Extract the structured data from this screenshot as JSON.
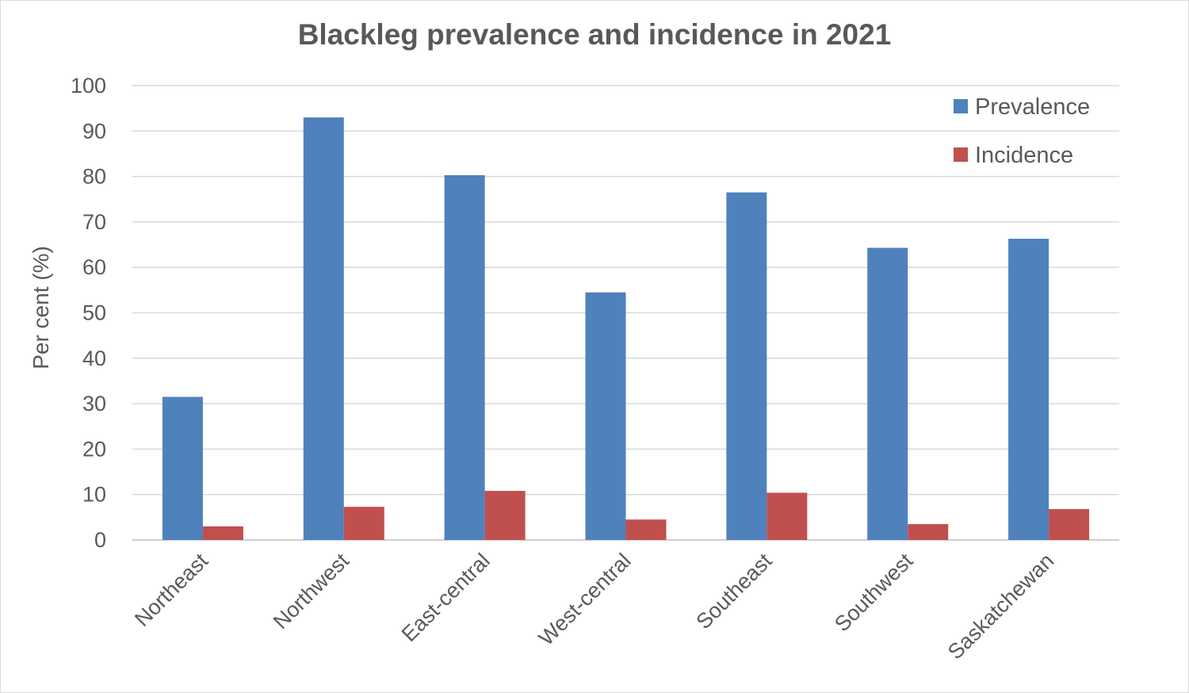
{
  "chart_data": {
    "type": "bar",
    "title": "Blackleg prevalence and incidence in 2021",
    "xlabel": "",
    "ylabel": "Per cent (%)",
    "ylim": [
      0,
      100
    ],
    "yticks": [
      0,
      10,
      20,
      30,
      40,
      50,
      60,
      70,
      80,
      90,
      100
    ],
    "grid": true,
    "legend_position": "top-right",
    "categories": [
      "Northeast",
      "Northwest",
      "East-central",
      "West-central",
      "Southeast",
      "Southwest",
      "Saskatchewan"
    ],
    "series": [
      {
        "name": "Prevalence",
        "color": "#4f81bd",
        "values": [
          31.5,
          93,
          80.3,
          54.5,
          76.5,
          64.3,
          66.3
        ]
      },
      {
        "name": "Incidence",
        "color": "#c0504d",
        "values": [
          3.0,
          7.3,
          10.8,
          4.5,
          10.4,
          3.5,
          6.8
        ]
      }
    ]
  }
}
